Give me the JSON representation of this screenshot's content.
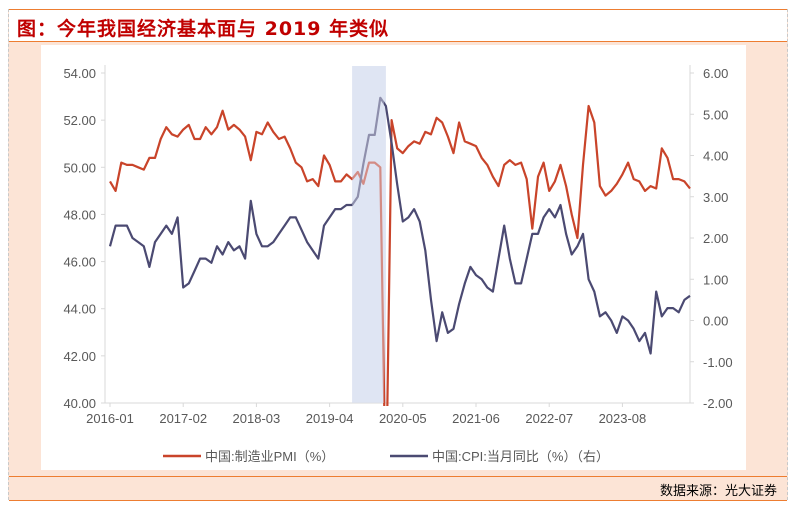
{
  "title": "图：今年我国经济基本面与 2019 年类似",
  "source": "数据来源：光大证券",
  "chart_data": {
    "type": "line",
    "title": "今年我国经济基本面与 2019 年类似",
    "x_start": "2016-01",
    "x_ticks": [
      "2016-01",
      "2017-02",
      "2018-03",
      "2019-04",
      "2020-05",
      "2021-06",
      "2022-07",
      "2023-08"
    ],
    "y_left": {
      "range": [
        40,
        54
      ],
      "ticks": [
        "40.00",
        "42.00",
        "44.00",
        "46.00",
        "48.00",
        "50.00",
        "52.00",
        "54.00"
      ]
    },
    "y_right": {
      "range": [
        -2,
        6
      ],
      "ticks": [
        "-2.00",
        "-1.00",
        "0.00",
        "1.00",
        "2.00",
        "3.00",
        "4.00",
        "5.00",
        "6.00"
      ]
    },
    "highlight": {
      "from": "2019-08",
      "to": "2020-02"
    },
    "legend_position": "bottom",
    "series": [
      {
        "name": "中国:制造业PMI（%）",
        "axis": "left",
        "color": "#c9442a",
        "values": [
          49.4,
          49.0,
          50.2,
          50.1,
          50.1,
          50.0,
          49.9,
          50.4,
          50.4,
          51.2,
          51.7,
          51.4,
          51.3,
          51.6,
          51.8,
          51.2,
          51.2,
          51.7,
          51.4,
          51.7,
          52.4,
          51.6,
          51.8,
          51.6,
          51.3,
          50.3,
          51.5,
          51.4,
          51.9,
          51.5,
          51.2,
          51.3,
          50.8,
          50.2,
          50.0,
          49.4,
          49.5,
          49.2,
          50.5,
          50.1,
          49.4,
          49.4,
          49.7,
          49.5,
          49.8,
          49.3,
          50.2,
          50.2,
          50.0,
          35.7,
          52.0,
          50.8,
          50.6,
          50.9,
          51.1,
          51.0,
          51.5,
          51.4,
          52.1,
          51.9,
          51.3,
          50.6,
          51.9,
          51.1,
          51.0,
          50.9,
          50.4,
          50.1,
          49.6,
          49.2,
          50.1,
          50.3,
          50.1,
          50.2,
          49.5,
          47.4,
          49.6,
          50.2,
          49.0,
          49.4,
          50.1,
          49.2,
          48.0,
          47.0,
          50.1,
          52.6,
          51.9,
          49.2,
          48.8,
          49.0,
          49.3,
          49.7,
          50.2,
          49.5,
          49.4,
          49.0,
          49.2,
          49.1,
          50.8,
          50.4,
          49.5,
          49.5,
          49.4,
          49.1
        ]
      },
      {
        "name": "中国:CPI:当月同比（%）（右）",
        "axis": "right",
        "color": "#4b4a72",
        "values": [
          1.8,
          2.3,
          2.3,
          2.3,
          2.0,
          1.9,
          1.8,
          1.3,
          1.9,
          2.1,
          2.3,
          2.1,
          2.5,
          0.8,
          0.9,
          1.2,
          1.5,
          1.5,
          1.4,
          1.8,
          1.6,
          1.9,
          1.7,
          1.8,
          1.5,
          2.9,
          2.1,
          1.8,
          1.8,
          1.9,
          2.1,
          2.3,
          2.5,
          2.5,
          2.2,
          1.9,
          1.7,
          1.5,
          2.3,
          2.5,
          2.7,
          2.7,
          2.8,
          2.8,
          3.0,
          3.8,
          4.5,
          4.5,
          5.4,
          5.2,
          4.3,
          3.3,
          2.4,
          2.5,
          2.7,
          2.4,
          1.7,
          0.5,
          -0.5,
          0.2,
          -0.3,
          -0.2,
          0.4,
          0.9,
          1.3,
          1.1,
          1.0,
          0.8,
          0.7,
          1.5,
          2.3,
          1.5,
          0.9,
          0.9,
          1.5,
          2.1,
          2.1,
          2.5,
          2.7,
          2.5,
          2.8,
          2.1,
          1.6,
          1.8,
          2.1,
          1.0,
          0.7,
          0.1,
          0.2,
          0.0,
          -0.3,
          0.1,
          0.0,
          -0.2,
          -0.5,
          -0.3,
          -0.8,
          0.7,
          0.1,
          0.3,
          0.3,
          0.2,
          0.5,
          0.6
        ]
      }
    ]
  }
}
